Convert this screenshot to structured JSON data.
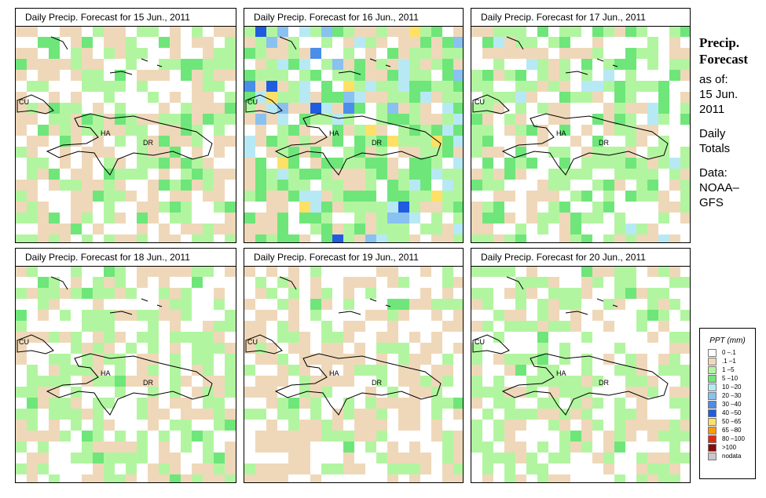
{
  "panels": [
    {
      "title": "Daily Precip. Forecast for  15 Jun., 2011"
    },
    {
      "title": "Daily Precip. Forecast for  16 Jun., 2011"
    },
    {
      "title": "Daily Precip. Forecast for  17 Jun., 2011"
    },
    {
      "title": "Daily Precip. Forecast for  18 Jun., 2011"
    },
    {
      "title": "Daily Precip. Forecast for  19 Jun., 2011"
    },
    {
      "title": "Daily Precip. Forecast for  20 Jun., 2011"
    }
  ],
  "map_labels": {
    "cu": "CU",
    "ha": "HA",
    "dr": "DR"
  },
  "side": {
    "title1": "Precip.",
    "title2": "Forecast",
    "asof": "as of:",
    "date1": "15 Jun.",
    "date2": "2011",
    "daily1": "Daily",
    "daily2": "Totals",
    "data1": "Data:",
    "data2": "NOAA–",
    "data3": "GFS"
  },
  "legend": {
    "title": "PPT (mm)",
    "items": [
      {
        "label": "0 –.1",
        "color": "#ffffff"
      },
      {
        "label": ".1 –1",
        "color": "#efd8b9"
      },
      {
        "label": "1 –5",
        "color": "#b2f5a0"
      },
      {
        "label": "5 –10",
        "color": "#6ee67a"
      },
      {
        "label": "10 –20",
        "color": "#b7e9f5"
      },
      {
        "label": "20 –30",
        "color": "#89c1f0"
      },
      {
        "label": "30 –40",
        "color": "#4a8eea"
      },
      {
        "label": "40 –50",
        "color": "#1f5ce0"
      },
      {
        "label": "50 –65",
        "color": "#ffe066"
      },
      {
        "label": "65 –80",
        "color": "#ff9b00"
      },
      {
        "label": "80 –100",
        "color": "#e12a10"
      },
      {
        "label": ">100",
        "color": "#8c0a0a"
      },
      {
        "label": "nodata",
        "color": "#c8c8c8"
      }
    ]
  }
}
